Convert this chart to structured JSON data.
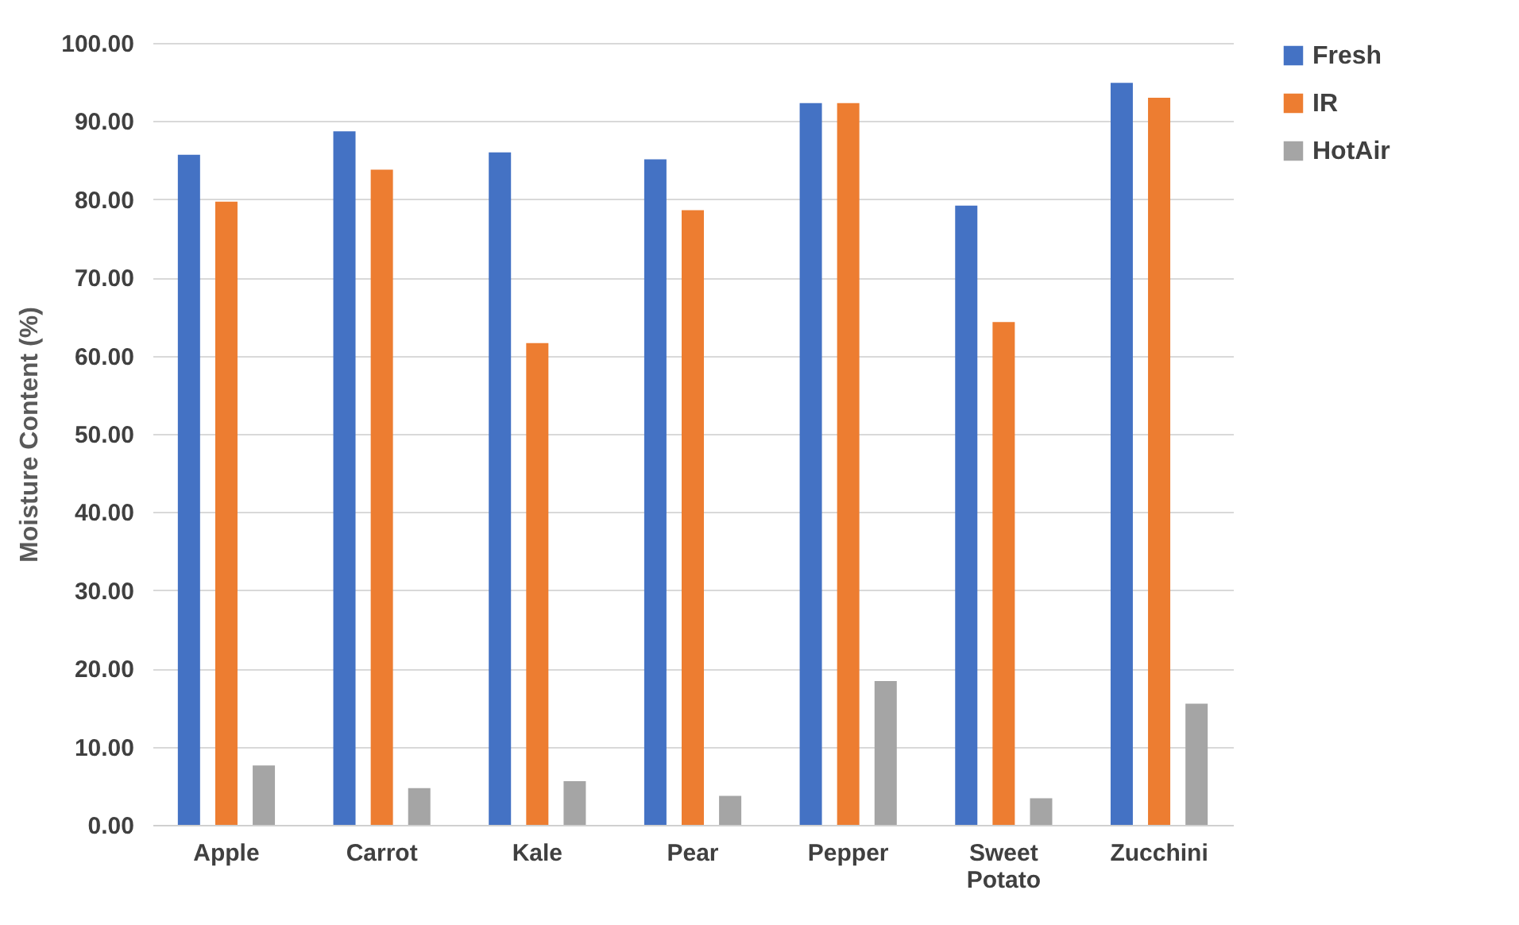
{
  "chart_data": {
    "type": "bar",
    "ylabel": "Moisture Content (%)",
    "categories": [
      "Apple",
      "Carrot",
      "Kale",
      "Pear",
      "Pepper",
      "Sweet Potato",
      "Zucchini"
    ],
    "series": [
      {
        "name": "Fresh",
        "color": "#4472c4",
        "values": [
          85.7,
          88.7,
          86.0,
          85.1,
          92.3,
          79.2,
          94.9
        ]
      },
      {
        "name": "IR",
        "color": "#ed7d31",
        "values": [
          79.7,
          83.8,
          61.6,
          78.6,
          92.3,
          64.3,
          93.0
        ]
      },
      {
        "name": "HotAir",
        "color": "#a5a5a5",
        "values": [
          7.6,
          4.7,
          5.6,
          3.7,
          18.4,
          3.4,
          15.5
        ]
      }
    ],
    "ylim": [
      0,
      100
    ],
    "yticks": [
      {
        "value": 0,
        "label": "0.00"
      },
      {
        "value": 10,
        "label": "10.00"
      },
      {
        "value": 20,
        "label": "20.00"
      },
      {
        "value": 30,
        "label": "30.00"
      },
      {
        "value": 40,
        "label": "40.00"
      },
      {
        "value": 50,
        "label": "50.00"
      },
      {
        "value": 60,
        "label": "60.00"
      },
      {
        "value": 70,
        "label": "70.00"
      },
      {
        "value": 80,
        "label": "80.00"
      },
      {
        "value": 90,
        "label": "90.00"
      },
      {
        "value": 100,
        "label": "100.00"
      }
    ],
    "grid": "y",
    "legend": "right"
  }
}
